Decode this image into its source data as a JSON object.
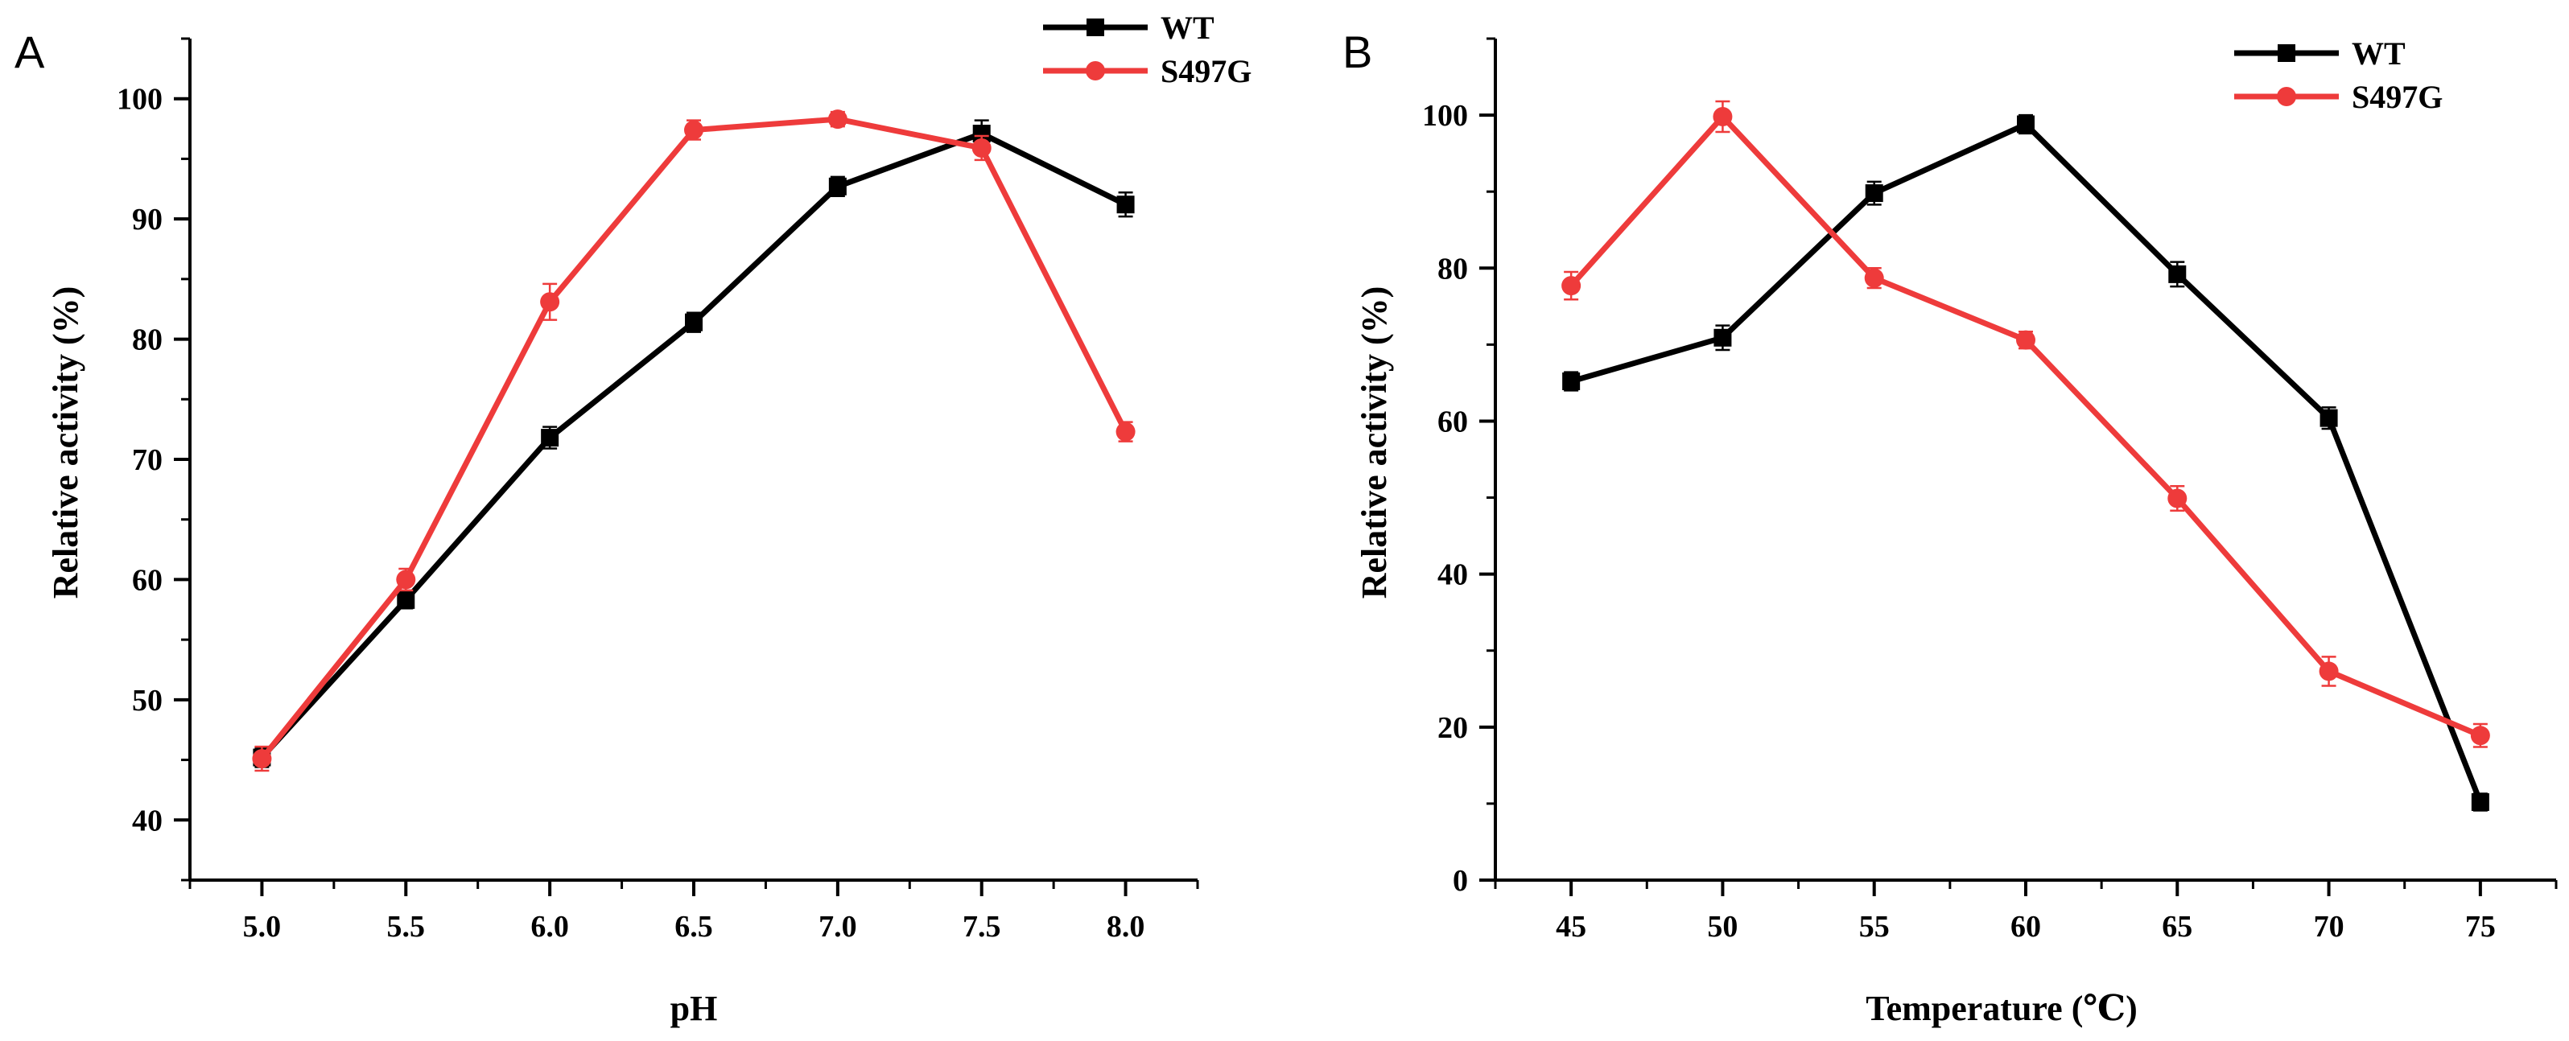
{
  "chart_data": [
    {
      "panel": "A",
      "type": "line",
      "xlabel": "pH",
      "ylabel": "Relative activity (%)",
      "xlim": [
        4.75,
        8.25
      ],
      "ylim": [
        35,
        105
      ],
      "xticks": [
        "5.0",
        "5.5",
        "6.0",
        "6.5",
        "7.0",
        "7.5",
        "8.0"
      ],
      "xtick_values": [
        5.0,
        5.5,
        6.0,
        6.5,
        7.0,
        7.5,
        8.0
      ],
      "yticks": [
        40,
        50,
        60,
        70,
        80,
        90,
        100
      ],
      "legend_position": "top-right",
      "series": [
        {
          "name": "WT",
          "color": "#000000",
          "marker": "square",
          "x": [
            5.0,
            5.5,
            6.0,
            6.5,
            7.0,
            7.5,
            8.0
          ],
          "y": [
            45.2,
            58.3,
            71.8,
            81.4,
            92.7,
            97.1,
            91.2
          ],
          "err": [
            0.8,
            0.7,
            0.9,
            0.8,
            0.8,
            1.1,
            1.0
          ]
        },
        {
          "name": "S497G",
          "color": "#ee3b3b",
          "marker": "circle",
          "x": [
            5.0,
            5.5,
            6.0,
            6.5,
            7.0,
            7.5,
            8.0
          ],
          "y": [
            45.1,
            60.0,
            83.1,
            97.4,
            98.3,
            95.9,
            72.3
          ],
          "err": [
            1.0,
            0.9,
            1.5,
            0.8,
            0.6,
            1.0,
            0.8
          ]
        }
      ]
    },
    {
      "panel": "B",
      "type": "line",
      "xlabel": "Temperature (℃)",
      "ylabel": "Relative activity (%)",
      "xlim": [
        42.5,
        77.5
      ],
      "ylim": [
        0,
        110
      ],
      "xticks": [
        "45",
        "50",
        "55",
        "60",
        "65",
        "70",
        "75"
      ],
      "xtick_values": [
        45,
        50,
        55,
        60,
        65,
        70,
        75
      ],
      "yticks": [
        0,
        20,
        40,
        60,
        80,
        100
      ],
      "legend_position": "top-right",
      "series": [
        {
          "name": "WT",
          "color": "#000000",
          "marker": "square",
          "x": [
            45,
            50,
            55,
            60,
            65,
            70,
            75
          ],
          "y": [
            65.2,
            70.9,
            89.8,
            98.8,
            79.2,
            60.4,
            10.2
          ],
          "err": [
            1.2,
            1.6,
            1.5,
            1.2,
            1.6,
            1.4,
            1.1
          ]
        },
        {
          "name": "S497G",
          "color": "#ee3b3b",
          "marker": "circle",
          "x": [
            45,
            50,
            55,
            60,
            65,
            70,
            75
          ],
          "y": [
            77.7,
            99.8,
            78.7,
            70.6,
            49.9,
            27.3,
            18.9
          ],
          "err": [
            1.8,
            2.0,
            1.3,
            1.1,
            1.6,
            1.9,
            1.5
          ]
        }
      ]
    }
  ]
}
